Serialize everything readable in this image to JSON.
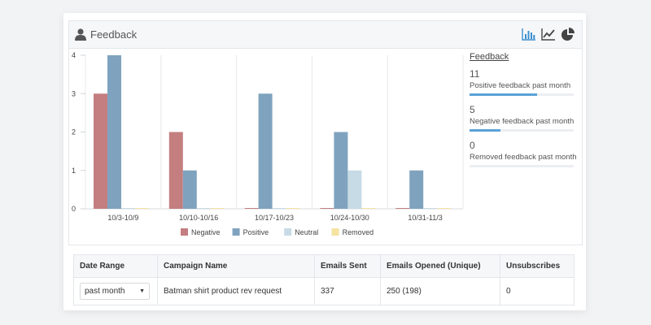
{
  "panel": {
    "title": "Feedback",
    "icons": [
      "user-icon",
      "bar-chart-icon",
      "line-chart-icon",
      "pie-chart-icon"
    ]
  },
  "chart_data": {
    "type": "bar",
    "categories": [
      "10/3-10/9",
      "10/10-10/16",
      "10/17-10/23",
      "10/24-10/30",
      "10/31-11/3"
    ],
    "series": [
      {
        "name": "Negative",
        "color": "#c47e80",
        "values": [
          3,
          2,
          0,
          0,
          0
        ]
      },
      {
        "name": "Positive",
        "color": "#7fa3be",
        "values": [
          4,
          1,
          3,
          2,
          1
        ]
      },
      {
        "name": "Neutral",
        "color": "#c7dbe6",
        "values": [
          0,
          0,
          0,
          1,
          0
        ]
      },
      {
        "name": "Removed",
        "color": "#f4e3a1",
        "values": [
          0,
          0,
          0,
          0,
          0
        ]
      }
    ],
    "ylim": [
      0,
      4
    ],
    "yticks": [
      "0",
      "1",
      "2",
      "3",
      "4"
    ],
    "grid": true,
    "legend": "bottom"
  },
  "stats": {
    "heading": "Feedback",
    "items": [
      {
        "value": "11",
        "label": "Positive feedback past month",
        "progress": 0.65
      },
      {
        "value": "5",
        "label": "Negative feedback past month",
        "progress": 0.3
      },
      {
        "value": "0",
        "label": "Removed feedback past month",
        "progress": 0
      }
    ]
  },
  "table": {
    "headers": [
      "Date Range",
      "Campaign Name",
      "Emails Sent",
      "Emails Opened (Unique)",
      "Unsubscribes"
    ],
    "date_range_selected": "past month",
    "row": {
      "campaign": "Batman shirt product rev request",
      "sent": "337",
      "opened": "250 (198)",
      "unsubscribes": "0"
    }
  }
}
